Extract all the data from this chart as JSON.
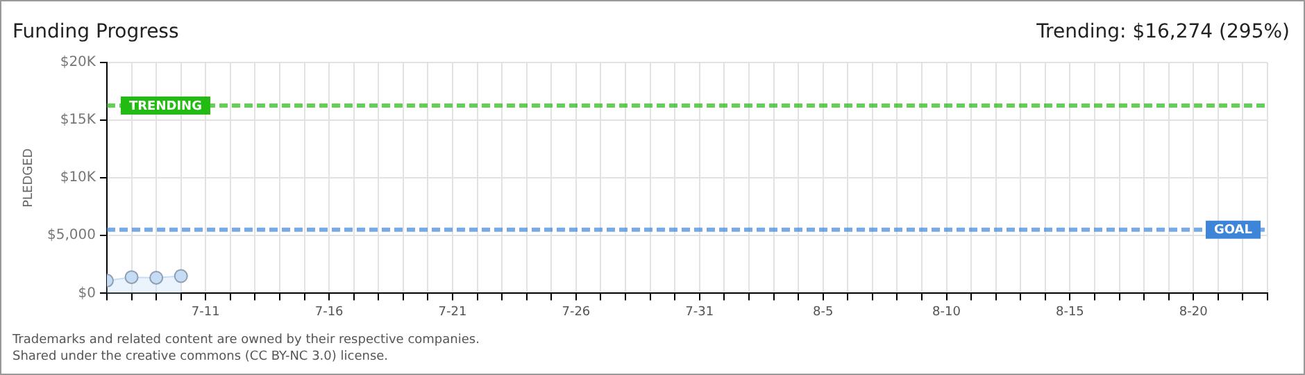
{
  "chart_data": {
    "type": "area",
    "title": "Funding Progress",
    "ylabel": "PLEDGED",
    "annotations": [
      "Trending: $16,274 (295%)",
      "Trademarks and related content are owned by their respective companies.",
      "Shared under the creative commons (CC BY-NC 3.0) license."
    ],
    "x": [
      "--07-07",
      "--07-08",
      "--07-09",
      "--07-10"
    ],
    "series": [
      {
        "color": "#c5dcf5",
        "values": [
          1100,
          1400,
          1350,
          1500
        ]
      }
    ],
    "marker": "circle",
    "grid": true,
    "legend": false,
    "xlim": [
      "--07-07",
      "--08-23"
    ],
    "xticks": [
      {
        "value": "--07-07",
        "label": null
      },
      {
        "value": "--07-08",
        "label": null
      },
      {
        "value": "--07-09",
        "label": null
      },
      {
        "value": "--07-10",
        "label": null
      },
      {
        "value": "--07-11",
        "label": "7-11"
      },
      {
        "value": "--07-12",
        "label": null
      },
      {
        "value": "--07-13",
        "label": null
      },
      {
        "value": "--07-14",
        "label": null
      },
      {
        "value": "--07-15",
        "label": null
      },
      {
        "value": "--07-16",
        "label": "7-16"
      },
      {
        "value": "--07-17",
        "label": null
      },
      {
        "value": "--07-18",
        "label": null
      },
      {
        "value": "--07-19",
        "label": null
      },
      {
        "value": "--07-20",
        "label": null
      },
      {
        "value": "--07-21",
        "label": "7-21"
      },
      {
        "value": "--07-22",
        "label": null
      },
      {
        "value": "--07-23",
        "label": null
      },
      {
        "value": "--07-24",
        "label": null
      },
      {
        "value": "--07-25",
        "label": null
      },
      {
        "value": "--07-26",
        "label": "7-26"
      },
      {
        "value": "--07-27",
        "label": null
      },
      {
        "value": "--07-28",
        "label": null
      },
      {
        "value": "--07-29",
        "label": null
      },
      {
        "value": "--07-30",
        "label": null
      },
      {
        "value": "--07-31",
        "label": "7-31"
      },
      {
        "value": "--08-01",
        "label": null
      },
      {
        "value": "--08-02",
        "label": null
      },
      {
        "value": "--08-03",
        "label": null
      },
      {
        "value": "--08-04",
        "label": null
      },
      {
        "value": "--08-05",
        "label": "8-5"
      },
      {
        "value": "--08-06",
        "label": null
      },
      {
        "value": "--08-07",
        "label": null
      },
      {
        "value": "--08-08",
        "label": null
      },
      {
        "value": "--08-09",
        "label": null
      },
      {
        "value": "--08-10",
        "label": "8-10"
      },
      {
        "value": "--08-11",
        "label": null
      },
      {
        "value": "--08-12",
        "label": null
      },
      {
        "value": "--08-13",
        "label": null
      },
      {
        "value": "--08-14",
        "label": null
      },
      {
        "value": "--08-15",
        "label": "8-15"
      },
      {
        "value": "--08-16",
        "label": null
      },
      {
        "value": "--08-17",
        "label": null
      },
      {
        "value": "--08-18",
        "label": null
      },
      {
        "value": "--08-19",
        "label": null
      },
      {
        "value": "--08-20",
        "label": "8-20"
      },
      {
        "value": "--08-21",
        "label": null
      },
      {
        "value": "--08-22",
        "label": null
      },
      {
        "value": "--08-23",
        "label": null
      }
    ],
    "ylim": [
      0,
      20000
    ],
    "yticks": [
      {
        "value": 0,
        "label": "$0"
      },
      {
        "value": 5000,
        "label": "$5,000"
      },
      {
        "value": 10000,
        "label": "$10K"
      },
      {
        "value": 15000,
        "label": "$15K"
      },
      {
        "value": 20000,
        "label": "$20K"
      }
    ],
    "ref_lines": [
      {
        "axis": "y",
        "value": 16274,
        "label": "TRENDING",
        "color": "#22bb11",
        "line_style": "dashed"
      },
      {
        "axis": "y",
        "value": 5517,
        "label": "GOAL",
        "color": "#3d85d8",
        "line_style": "dashed"
      }
    ]
  }
}
